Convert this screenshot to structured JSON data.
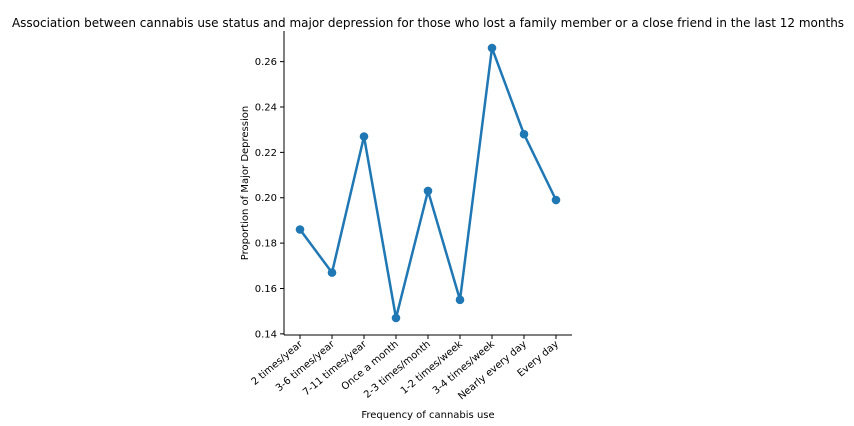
{
  "chart_data": {
    "type": "line",
    "title": "Association between cannabis use status and major depression for those who lost a family member or a close friend in the last 12 months",
    "xlabel": "Frequency of cannabis use",
    "ylabel": "Proportion of Major Depression",
    "categories": [
      "2 times/year",
      "3-6 times/year",
      "7-11 times/year",
      "Once a month",
      "2-3 times/month",
      "1-2 times/week",
      "3-4 times/week",
      "Nearly every day",
      "Every day"
    ],
    "values": [
      0.186,
      0.167,
      0.227,
      0.147,
      0.203,
      0.155,
      0.266,
      0.228,
      0.199
    ],
    "yticks": [
      "0.14",
      "0.16",
      "0.18",
      "0.20",
      "0.22",
      "0.24",
      "0.26"
    ],
    "ylim": [
      0.1395,
      0.2735
    ],
    "grid": false,
    "color": "#1f77b4"
  }
}
